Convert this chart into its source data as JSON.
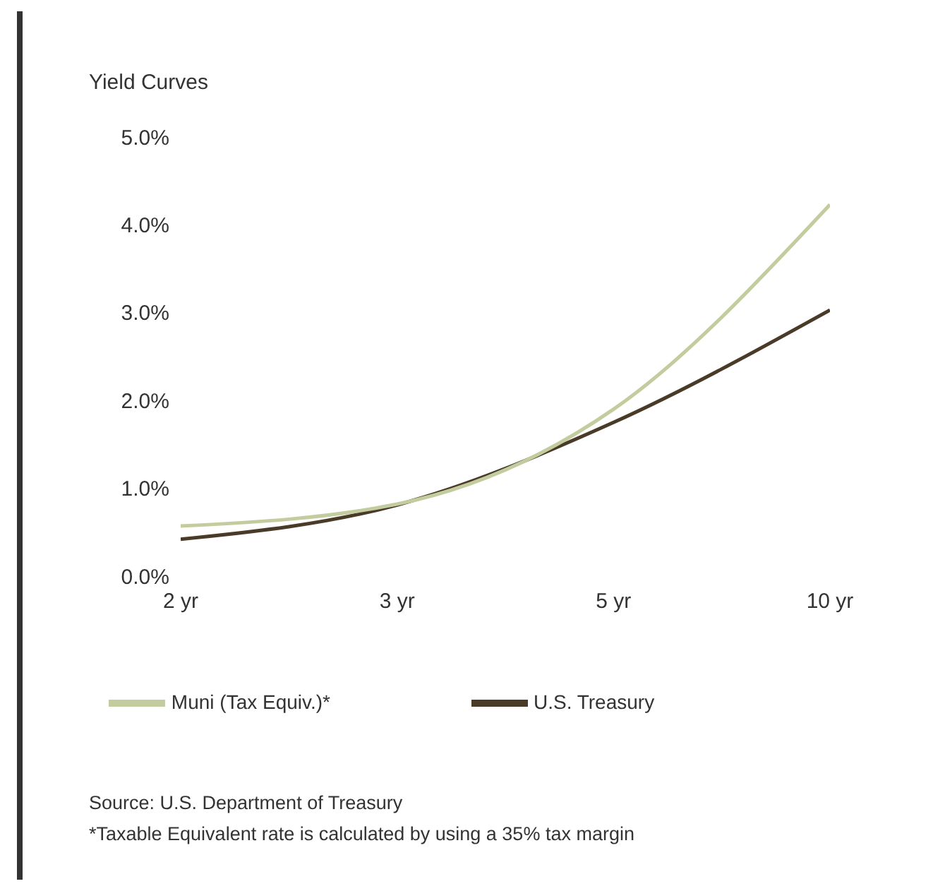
{
  "chart_data": {
    "type": "line",
    "title": "Yield Curves",
    "categories": [
      "2 yr",
      "3 yr",
      "5 yr",
      "10 yr"
    ],
    "series": [
      {
        "name": "U.S. Treasury",
        "color": "#4a3b28",
        "values": [
          0.42,
          0.81,
          1.75,
          3.03
        ]
      },
      {
        "name": "Muni (Tax Equiv.)*",
        "color": "#c3cc9e",
        "values": [
          0.57,
          0.82,
          1.9,
          4.23
        ]
      }
    ],
    "ylim": [
      0,
      5
    ],
    "yticks": [
      {
        "value": 0,
        "label": "0.0%"
      },
      {
        "value": 1,
        "label": "1.0%"
      },
      {
        "value": 2,
        "label": "2.0%"
      },
      {
        "value": 3,
        "label": "3.0%"
      },
      {
        "value": 4,
        "label": "4.0%"
      },
      {
        "value": 5,
        "label": "5.0%"
      }
    ],
    "grid": false,
    "legend": "bottom",
    "marker": "none",
    "line_style": "solid",
    "annotations": [
      "Source: U.S. Department of Treasury",
      "*Taxable Equivalent rate is calculated by using a 35% tax margin"
    ]
  }
}
